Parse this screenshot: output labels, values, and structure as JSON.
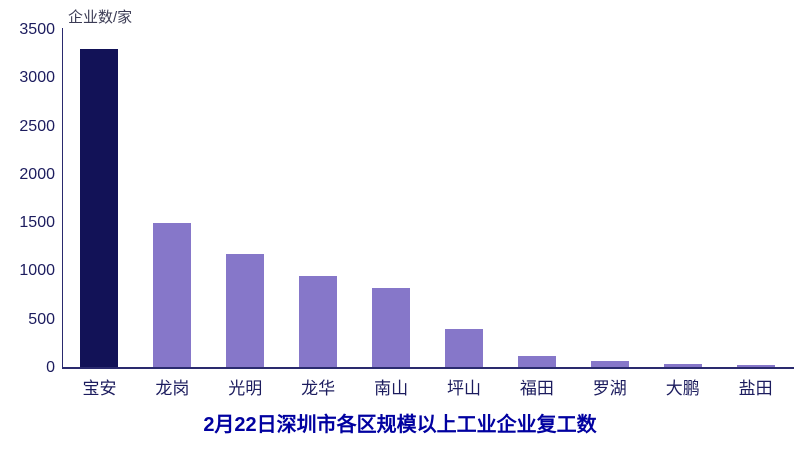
{
  "chart_data": {
    "type": "bar",
    "title": "2月22日深圳市各区规模以上工业企业复工数",
    "ylabel": "企业数/家",
    "xlabel": "",
    "categories": [
      "宝安",
      "龙岗",
      "光明",
      "龙华",
      "南山",
      "坪山",
      "福田",
      "罗湖",
      "大鹏",
      "盐田"
    ],
    "values": [
      3300,
      1500,
      1180,
      950,
      830,
      400,
      120,
      70,
      45,
      30
    ],
    "ylim": [
      0,
      3500
    ],
    "yticks": [
      0,
      500,
      1000,
      1500,
      2000,
      2500,
      3000,
      3500
    ],
    "grid": false,
    "legend": "none",
    "colors": {
      "highlight_bar": "#121257",
      "bar": "#8677c9",
      "axis": "#2a2a6e",
      "tick_label": "#1c1c5e",
      "title": "#0101a0",
      "ylabel_text": "#3c3c55",
      "background": "#ffffff"
    }
  }
}
